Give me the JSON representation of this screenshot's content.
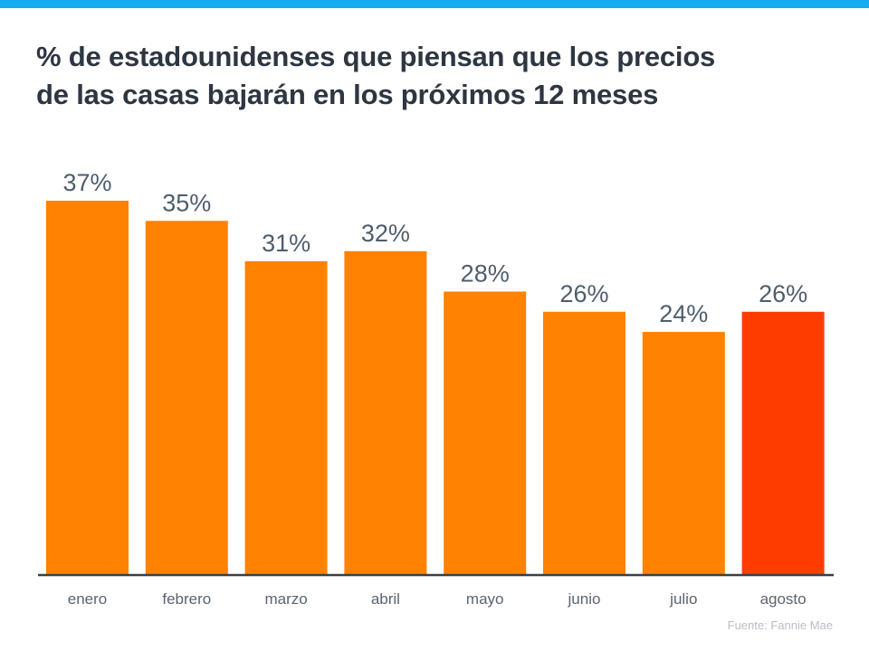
{
  "header": {
    "accent_color": "#15acf0"
  },
  "chart_data": {
    "type": "bar",
    "title": "% de estadounidenses que piensan que los precios de las casas bajarán en los próximos 12 meses",
    "title_lines": [
      "% de estadounidenses que piensan que los precios",
      "de las casas bajarán en los próximos 12 meses"
    ],
    "categories": [
      "enero",
      "febrero",
      "marzo",
      "abril",
      "mayo",
      "junio",
      "julio",
      "agosto"
    ],
    "values": [
      37,
      35,
      31,
      32,
      28,
      26,
      24,
      26
    ],
    "data_labels": [
      "37%",
      "35%",
      "31%",
      "32%",
      "28%",
      "26%",
      "24%",
      "26%"
    ],
    "colors": [
      "#ff8200",
      "#ff8200",
      "#ff8200",
      "#ff8200",
      "#ff8200",
      "#ff8200",
      "#ff8200",
      "#ff3c00"
    ],
    "highlight_category": "agosto",
    "xlabel": "",
    "ylabel": "",
    "ylim": [
      0,
      37
    ],
    "grid": false,
    "legend": "none",
    "source": "Fuente:  Fannie Mae"
  }
}
